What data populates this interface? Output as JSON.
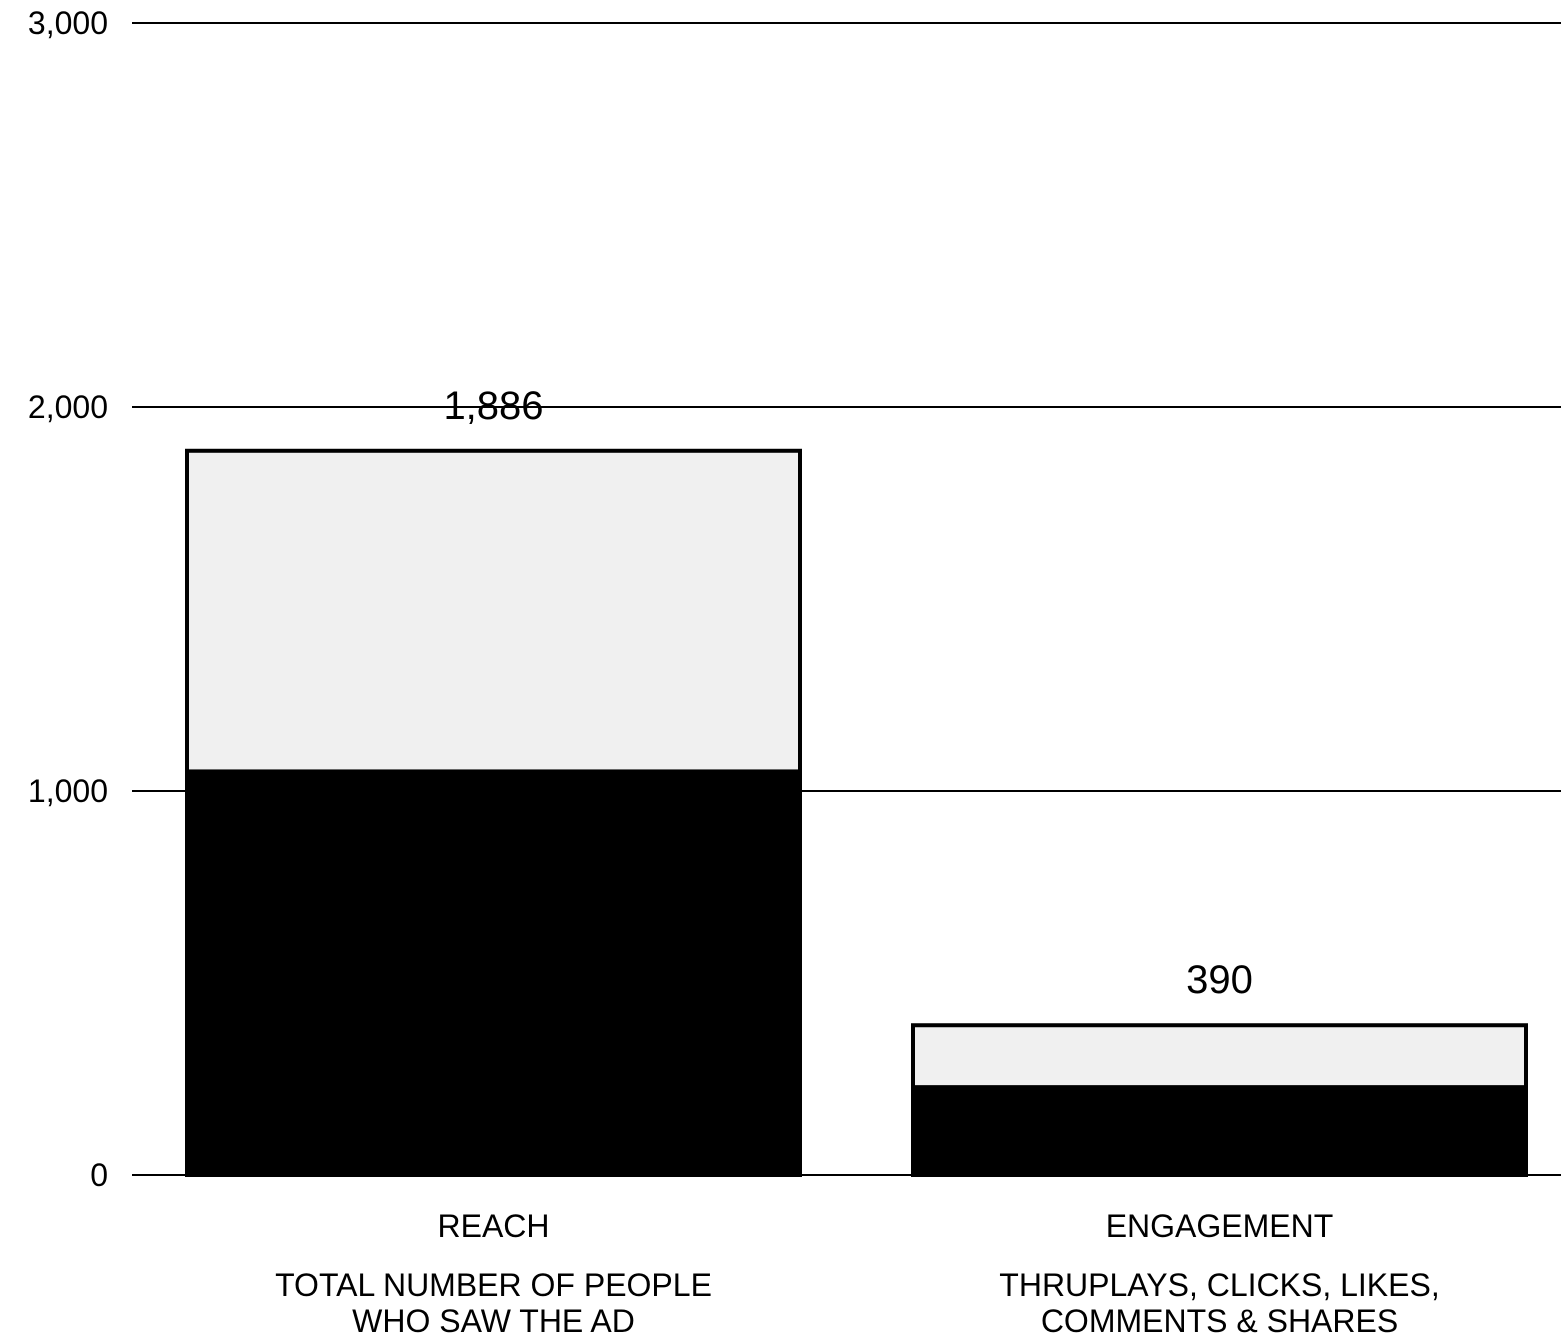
{
  "chart_data": {
    "type": "bar",
    "title": "",
    "xlabel": "",
    "ylabel": "",
    "ylim": [
      0,
      3000
    ],
    "yticks": [
      0,
      1000,
      2000,
      3000
    ],
    "ytick_labels": [
      "0",
      "1,000",
      "2,000",
      "3,000"
    ],
    "grid": true,
    "categories": [
      {
        "label": "REACH",
        "sublabel_lines": [
          "TOTAL NUMBER OF PEOPLE",
          "WHO SAW THE AD"
        ]
      },
      {
        "label": "ENGAGEMENT",
        "sublabel_lines": [
          "THRUPLAYS, CLICKS, LIKES,",
          "COMMENTS & SHARES"
        ]
      }
    ],
    "values": [
      1886,
      390
    ],
    "value_labels": [
      "1,886",
      "390"
    ],
    "fill_fraction": [
      0.56,
      0.6
    ],
    "colors": {
      "bar_bg": "#f0f0f0",
      "bar_fill": "#000000",
      "bar_border": "#000000",
      "grid": "#000000",
      "text": "#000000"
    }
  }
}
